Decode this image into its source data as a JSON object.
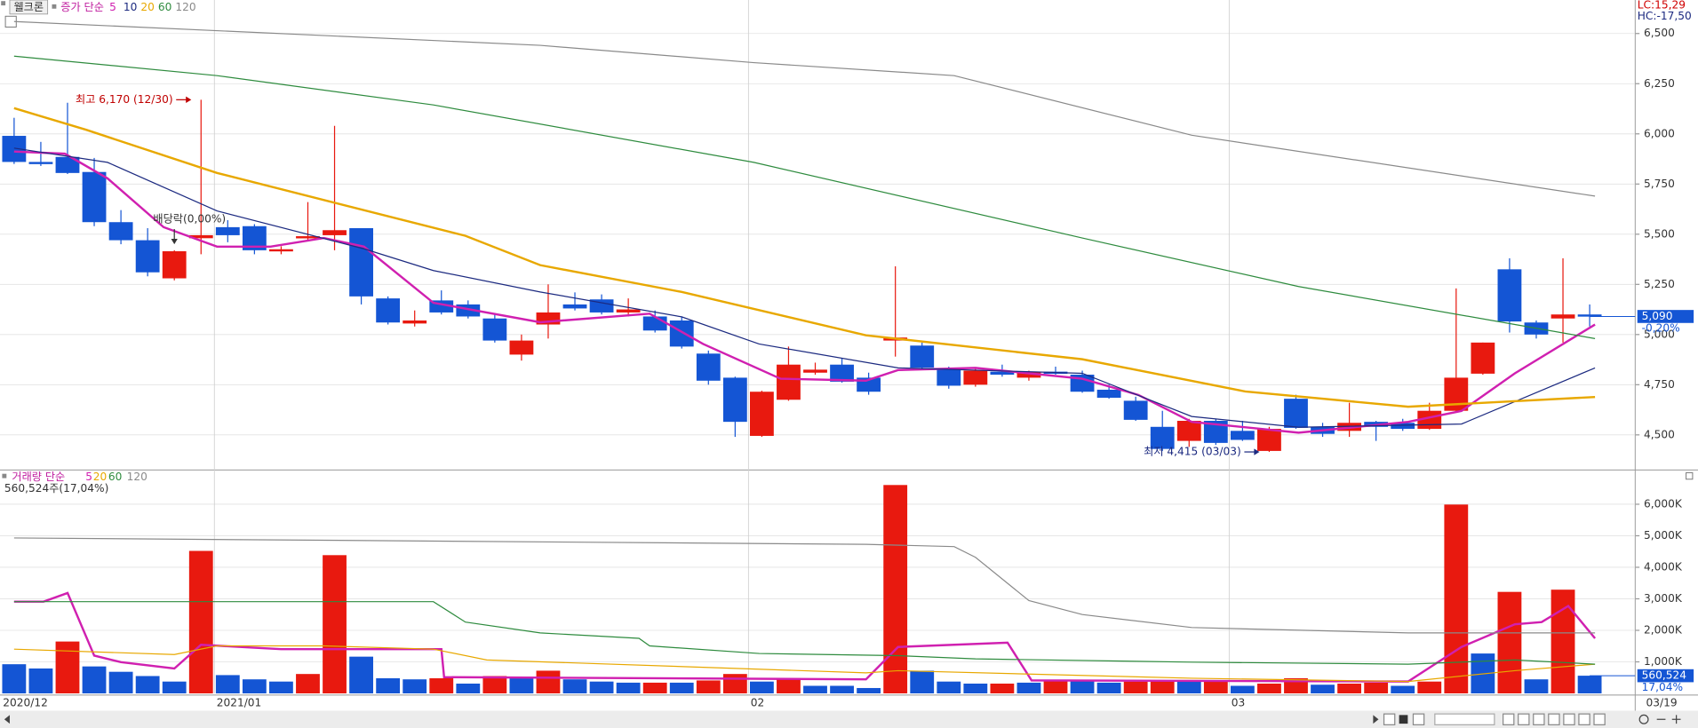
{
  "stock_button": "웰크론",
  "footer_date": "03/19",
  "chart_data": [
    {
      "type": "candlestick",
      "legend_title": "증가 단순",
      "lc_label": "LC:15,29",
      "hc_label": "HC:-17,50",
      "up_color": "#e8190f",
      "down_color": "#1455d4",
      "open": [
        5990,
        5860,
        5885,
        5810,
        5560,
        5470,
        5280,
        5480,
        5535,
        5540,
        5415,
        5480,
        5495,
        5530,
        5180,
        5055,
        5170,
        5150,
        5080,
        4900,
        5050,
        5150,
        5175,
        5110,
        5090,
        5070,
        4905,
        4785,
        4495,
        4675,
        4810,
        4850,
        4785,
        4970,
        4945,
        4830,
        4750,
        4815,
        4785,
        4815,
        4800,
        4725,
        4670,
        4540,
        4470,
        4570,
        4520,
        4420,
        4680,
        4540,
        4520,
        4565,
        4560,
        4530,
        4620,
        4805,
        5325,
        5060,
        5080,
        5100
      ],
      "high": [
        6080,
        5960,
        6155,
        5880,
        5620,
        5530,
        5420,
        6170,
        5570,
        5550,
        5440,
        5660,
        6040,
        5530,
        5190,
        5120,
        5220,
        5170,
        5100,
        5000,
        5250,
        5210,
        5200,
        5180,
        5120,
        5090,
        4920,
        4790,
        4720,
        4940,
        4860,
        4880,
        4810,
        5340,
        4960,
        4840,
        4830,
        4850,
        4820,
        4840,
        4820,
        4750,
        4690,
        4620,
        4580,
        4580,
        4570,
        4540,
        4700,
        4560,
        4660,
        4570,
        4580,
        4660,
        5230,
        4960,
        5380,
        5070,
        5380,
        5150
      ],
      "low": [
        5850,
        5840,
        5800,
        5540,
        5450,
        5290,
        5270,
        5400,
        5460,
        5400,
        5400,
        5470,
        5420,
        5150,
        5050,
        5040,
        5100,
        5080,
        4960,
        4870,
        4980,
        5120,
        5100,
        5090,
        5010,
        4930,
        4750,
        4490,
        4490,
        4670,
        4800,
        4760,
        4700,
        4890,
        4830,
        4730,
        4740,
        4790,
        4770,
        4800,
        4710,
        4680,
        4570,
        4420,
        4440,
        4450,
        4470,
        4415,
        4530,
        4490,
        4490,
        4470,
        4520,
        4525,
        4615,
        4800,
        5010,
        4980,
        4960,
        5040
      ],
      "close": [
        5860,
        5850,
        5805,
        5560,
        5470,
        5310,
        5415,
        5495,
        5495,
        5420,
        5425,
        5490,
        5520,
        5190,
        5060,
        5070,
        5110,
        5090,
        4970,
        4970,
        5110,
        5130,
        5110,
        5125,
        5020,
        4940,
        4770,
        4565,
        4715,
        4850,
        4825,
        4765,
        4715,
        4985,
        4835,
        4745,
        4820,
        4800,
        4815,
        4805,
        4715,
        4685,
        4575,
        4430,
        4570,
        4460,
        4475,
        4530,
        4535,
        4505,
        4560,
        4540,
        4530,
        4620,
        4785,
        4960,
        5065,
        5000,
        5100,
        5090
      ],
      "ylim": [
        4333,
        6667
      ],
      "yticks": [
        {
          "value": 4500,
          "label": "4,500"
        },
        {
          "value": 4750,
          "label": "4,750"
        },
        {
          "value": 5000,
          "label": "5,000"
        },
        {
          "value": 5250,
          "label": "5,250"
        },
        {
          "value": 5500,
          "label": "5,500"
        },
        {
          "value": 5750,
          "label": "5,750"
        },
        {
          "value": 6000,
          "label": "6,000"
        },
        {
          "value": 6250,
          "label": "6,250"
        },
        {
          "value": 6500,
          "label": "6,500"
        }
      ],
      "grid": true,
      "last_label": {
        "value": 5090,
        "label": "5,090"
      },
      "change_label": "-0,20%",
      "series": [
        {
          "name": "5",
          "color": "#d020b0",
          "x": [
            0,
            1.9,
            3.5,
            5.6,
            7.6,
            9.6,
            11.6,
            13.1,
            15.7,
            19.7,
            23.8,
            25.8,
            28.7,
            31.9,
            33.1,
            36,
            40,
            42.1,
            44.1,
            48.1,
            52.2,
            54.2,
            56.2,
            59.2
          ],
          "values": [
            5912,
            5901,
            5778,
            5535,
            5438,
            5438,
            5481,
            5438,
            5158,
            5061,
            5104,
            4953,
            4780,
            4770,
            4823,
            4834,
            4780,
            4699,
            4565,
            4511,
            4565,
            4619,
            4807,
            5050
          ]
        },
        {
          "name": "10",
          "color": "#1c2a80",
          "x": [
            0,
            3.5,
            7.6,
            13.1,
            15.7,
            19.7,
            25,
            27.9,
            33.1,
            40,
            44.1,
            48.1,
            54.2,
            59.2
          ],
          "values": [
            5929,
            5858,
            5616,
            5427,
            5319,
            5212,
            5088,
            4953,
            4834,
            4807,
            4592,
            4538,
            4554,
            4834
          ]
        },
        {
          "name": "20",
          "color": "#e8a800",
          "x": [
            0,
            2.7,
            7.6,
            16.9,
            19.7,
            25,
            31.9,
            40,
            46.1,
            52.2,
            59.2
          ],
          "values": [
            6128,
            6020,
            5805,
            5492,
            5346,
            5212,
            4996,
            4877,
            4716,
            4640,
            4689
          ]
        },
        {
          "name": "60",
          "color": "#2e8b3e",
          "x": [
            0,
            7.6,
            15.7,
            27.7,
            40,
            48.1,
            56.2,
            59.2
          ],
          "values": [
            6387,
            6290,
            6144,
            5858,
            5481,
            5239,
            5050,
            4980
          ]
        },
        {
          "name": "120",
          "color": "#8a8a8a",
          "x": [
            0,
            19.7,
            27.7,
            35.2,
            44.1,
            59.2
          ],
          "values": [
            6560,
            6441,
            6355,
            6290,
            5993,
            5690
          ]
        }
      ],
      "annotations": [
        {
          "text": "최고 6,170 (12/30)",
          "x": 7,
          "value": 6170,
          "direction": "right",
          "color": "#c00000"
        },
        {
          "text": "최저 4,415 (03/03)",
          "x": 47,
          "value": 4415,
          "direction": "right",
          "color": "#1c2a80"
        },
        {
          "text": "배당락(0,00%)",
          "x": 6,
          "value": 5450,
          "direction": "down",
          "color": "#333333"
        }
      ]
    },
    {
      "type": "bar",
      "legend_title": "거래량 단순",
      "current_label": "560,524주(17,04%)",
      "categories": [
        "2020/12",
        null,
        null,
        null,
        null,
        null,
        null,
        null,
        "2021/01",
        null,
        null,
        null,
        null,
        null,
        null,
        null,
        null,
        null,
        null,
        null,
        null,
        null,
        null,
        null,
        null,
        null,
        null,
        null,
        "02",
        null,
        null,
        null,
        null,
        null,
        null,
        null,
        null,
        null,
        null,
        null,
        null,
        null,
        null,
        null,
        null,
        null,
        "03",
        null,
        null,
        null,
        null,
        null,
        null,
        null,
        null,
        null,
        null,
        null,
        null,
        null
      ],
      "values": [
        925,
        790,
        1645,
        855,
        685,
        550,
        375,
        4520,
        580,
        445,
        375,
        615,
        4385,
        1165,
        480,
        445,
        480,
        310,
        550,
        480,
        720,
        445,
        375,
        340,
        340,
        340,
        410,
        615,
        375,
        480,
        240,
        240,
        170,
        6610,
        720,
        375,
        310,
        310,
        340,
        410,
        410,
        340,
        375,
        410,
        410,
        410,
        240,
        310,
        480,
        275,
        310,
        340,
        240,
        375,
        5990,
        1265,
        3220,
        445,
        3290,
        560.524
      ],
      "colors": [
        "#1455d4",
        "#1455d4",
        "#e8190f",
        "#1455d4",
        "#1455d4",
        "#1455d4",
        "#1455d4",
        "#e8190f",
        "#1455d4",
        "#1455d4",
        "#1455d4",
        "#e8190f",
        "#e8190f",
        "#1455d4",
        "#1455d4",
        "#1455d4",
        "#e8190f",
        "#1455d4",
        "#e8190f",
        "#1455d4",
        "#e8190f",
        "#1455d4",
        "#1455d4",
        "#1455d4",
        "#e8190f",
        "#1455d4",
        "#e8190f",
        "#e8190f",
        "#1455d4",
        "#e8190f",
        "#1455d4",
        "#1455d4",
        "#1455d4",
        "#e8190f",
        "#1455d4",
        "#1455d4",
        "#1455d4",
        "#e8190f",
        "#1455d4",
        "#e8190f",
        "#1455d4",
        "#1455d4",
        "#e8190f",
        "#e8190f",
        "#1455d4",
        "#e8190f",
        "#1455d4",
        "#e8190f",
        "#e8190f",
        "#1455d4",
        "#e8190f",
        "#e8190f",
        "#1455d4",
        "#e8190f",
        "#e8190f",
        "#1455d4",
        "#e8190f",
        "#1455d4",
        "#e8190f",
        "#1455d4"
      ],
      "ylim": [
        0,
        7000
      ],
      "yticks": [
        {
          "value": 1000,
          "label": "1,000K"
        },
        {
          "value": 2000,
          "label": "2,000K"
        },
        {
          "value": 3000,
          "label": "3,000K"
        },
        {
          "value": 4000,
          "label": "4,000K"
        },
        {
          "value": 5000,
          "label": "5,000K"
        },
        {
          "value": 6000,
          "label": "6,000K"
        }
      ],
      "grid": true,
      "last_label": {
        "value": 560.524,
        "label": "560,524"
      },
      "ratio_label": "17,04%",
      "series": [
        {
          "name": "5",
          "color": "#d020b0",
          "x": [
            0,
            1.1,
            2,
            3,
            4,
            6,
            7,
            10,
            12,
            16,
            16.1,
            31.9,
            33.1,
            37.2,
            38.1,
            52.2,
            54.2,
            56.2,
            57.2,
            58.2,
            59.2
          ],
          "values": [
            2911,
            2911,
            3185,
            1199,
            993,
            788,
            1541,
            1404,
            1404,
            1404,
            514,
            445,
            1473,
            1610,
            411,
            377,
            1473,
            2192,
            2260,
            2774,
            1747
          ]
        },
        {
          "name": "20",
          "color": "#e8a800",
          "x": [
            0,
            6,
            7.6,
            11.6,
            15.7,
            17.7,
            31.9,
            33.1,
            44.1,
            52.2,
            56.2,
            59.2
          ],
          "values": [
            1404,
            1233,
            1507,
            1507,
            1404,
            1062,
            651,
            719,
            480,
            377,
            719,
            925
          ]
        },
        {
          "name": "60",
          "color": "#2e8b3e",
          "x": [
            0,
            15.7,
            16.9,
            19.7,
            23.4,
            23.8,
            27.9,
            33.1,
            36,
            44.1,
            52.2,
            56.2,
            59.2
          ],
          "values": [
            2911,
            2911,
            2260,
            1918,
            1747,
            1507,
            1267,
            1199,
            1096,
            993,
            925,
            1062,
            925
          ]
        },
        {
          "name": "120",
          "color": "#8a8a8a",
          "x": [
            0,
            31.9,
            35.2,
            36,
            38,
            40,
            44.1,
            52.2,
            59.2
          ],
          "values": [
            4932,
            4727,
            4658,
            4315,
            2945,
            2500,
            2089,
            1918,
            1918
          ]
        }
      ]
    }
  ]
}
